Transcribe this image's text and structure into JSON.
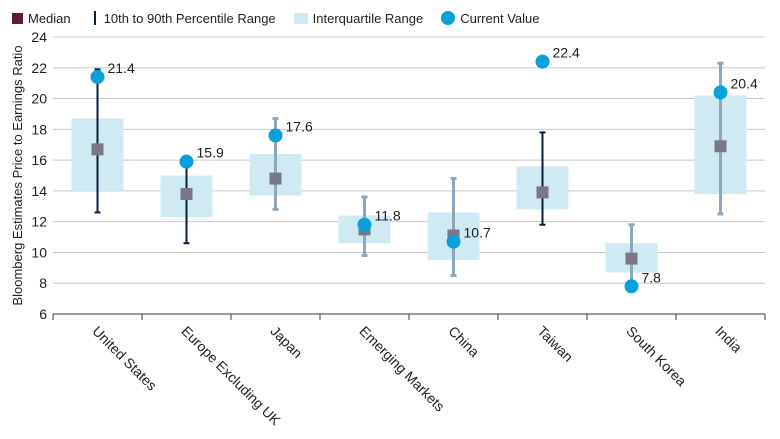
{
  "legend": {
    "median": "Median",
    "range": "10th to 90th Percentile Range",
    "iqr": "Interquartile Range",
    "current": "Current Value"
  },
  "colors": {
    "median": "#7a7787",
    "median_legend": "#5b1a3a",
    "range_dark": "#0b1f3a",
    "range_light": "#8ea6ba",
    "iqr": "#cfeaf3",
    "current": "#0aa0dc",
    "grid": "#c8c8c8"
  },
  "chart_data": {
    "type": "box",
    "title": "",
    "ylabel": "Bloomberg Estimates Price to Earnings Ratio",
    "ylim": [
      6,
      24
    ],
    "yticks": [
      6,
      8,
      10,
      12,
      14,
      16,
      18,
      20,
      22,
      24
    ],
    "grid": true,
    "legend_position": "top-left",
    "categories": [
      "United States",
      "Europe Excluding UK",
      "Japan",
      "Emerging Markets",
      "China",
      "Taiwan",
      "South Korea",
      "India"
    ],
    "p10": [
      12.6,
      10.6,
      12.8,
      9.8,
      8.5,
      11.8,
      7.8,
      12.5
    ],
    "p90": [
      21.9,
      15.9,
      18.7,
      13.6,
      14.8,
      17.8,
      11.8,
      22.3
    ],
    "q1": [
      14.0,
      12.3,
      13.7,
      10.6,
      9.5,
      12.8,
      8.7,
      13.8
    ],
    "q3": [
      18.7,
      15.0,
      16.4,
      12.4,
      12.6,
      15.6,
      10.6,
      20.2
    ],
    "median": [
      16.7,
      13.8,
      14.8,
      11.5,
      11.1,
      13.9,
      9.6,
      16.9
    ],
    "current": [
      21.4,
      15.9,
      17.6,
      11.8,
      10.7,
      22.4,
      7.8,
      20.4
    ],
    "current_labels": [
      "21.4",
      "15.9",
      "17.6",
      "11.8",
      "10.7",
      "22.4",
      "7.8",
      "20.4"
    ],
    "range_style": [
      "dark",
      "dark",
      "light",
      "light",
      "light",
      "dark",
      "light",
      "light"
    ]
  }
}
